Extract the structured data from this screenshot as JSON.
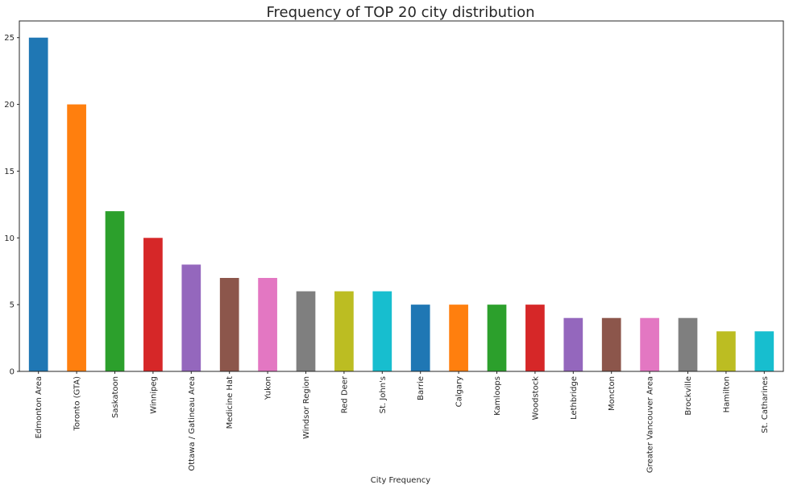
{
  "chart_data": {
    "type": "bar",
    "title": "Frequency of TOP 20 city distribution",
    "xlabel": "City Frequency",
    "ylabel": "",
    "ylim": [
      0,
      26.25
    ],
    "yticks": [
      "0",
      "5",
      "10",
      "15",
      "20",
      "25"
    ],
    "grid": false,
    "legend": "none",
    "categories": [
      "Edmonton Area",
      "Toronto (GTA)",
      "Saskatoon",
      "Winnipeg",
      "Ottawa / Gatineau Area",
      "Medicine Hat",
      "Yukon",
      "Windsor Region",
      "Red Deer",
      "St. John's",
      "Barrie",
      "Calgary",
      "Kamloops",
      "Woodstock",
      "Lethbridge",
      "Moncton",
      "Greater Vancouver Area",
      "Brockville",
      "Hamilton",
      "St. Catharines"
    ],
    "values": [
      25,
      20,
      12,
      10,
      8,
      7,
      7,
      6,
      6,
      6,
      5,
      5,
      5,
      5,
      4,
      4,
      4,
      4,
      3,
      3
    ],
    "colors": [
      "#1f77b4",
      "#ff7f0e",
      "#2ca02c",
      "#d62728",
      "#9467bd",
      "#8c564b",
      "#e377c2",
      "#7f7f7f",
      "#bcbd22",
      "#17becf",
      "#1f77b4",
      "#ff7f0e",
      "#2ca02c",
      "#d62728",
      "#9467bd",
      "#8c564b",
      "#e377c2",
      "#7f7f7f",
      "#bcbd22",
      "#17becf"
    ]
  }
}
